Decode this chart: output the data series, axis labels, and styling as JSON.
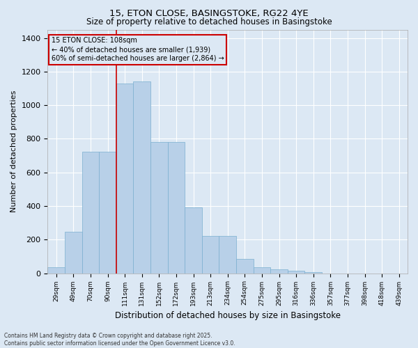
{
  "title1": "15, ETON CLOSE, BASINGSTOKE, RG22 4YE",
  "title2": "Size of property relative to detached houses in Basingstoke",
  "xlabel": "Distribution of detached houses by size in Basingstoke",
  "ylabel": "Number of detached properties",
  "categories": [
    "29sqm",
    "49sqm",
    "70sqm",
    "90sqm",
    "111sqm",
    "131sqm",
    "152sqm",
    "172sqm",
    "193sqm",
    "213sqm",
    "234sqm",
    "254sqm",
    "275sqm",
    "295sqm",
    "316sqm",
    "336sqm",
    "357sqm",
    "377sqm",
    "398sqm",
    "418sqm",
    "439sqm"
  ],
  "values": [
    35,
    245,
    725,
    725,
    1130,
    1140,
    780,
    780,
    390,
    220,
    220,
    85,
    35,
    25,
    15,
    5,
    0,
    0,
    0,
    0,
    0
  ],
  "bar_color": "#b8d0e8",
  "bar_edge_color": "#7aafd0",
  "bar_width": 1.0,
  "vline_color": "#cc0000",
  "vline_x_index": 4,
  "annotation_title": "15 ETON CLOSE: 108sqm",
  "annotation_line1": "← 40% of detached houses are smaller (1,939)",
  "annotation_line2": "60% of semi-detached houses are larger (2,864) →",
  "annotation_box_edgecolor": "#cc0000",
  "ylim_max": 1450,
  "yticks": [
    0,
    200,
    400,
    600,
    800,
    1000,
    1200,
    1400
  ],
  "background_color": "#dce8f4",
  "grid_color": "#ffffff",
  "footer1": "Contains HM Land Registry data © Crown copyright and database right 2025.",
  "footer2": "Contains public sector information licensed under the Open Government Licence v3.0."
}
